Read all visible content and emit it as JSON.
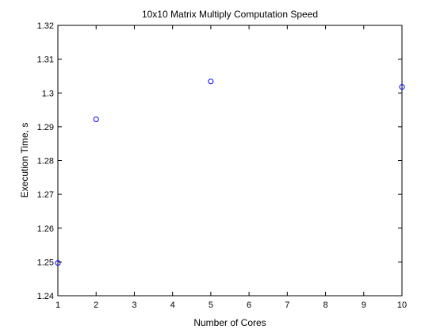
{
  "chart_data": {
    "type": "scatter",
    "title": "10x10 Matrix Multiply Computation Speed",
    "xlabel": "Number of Cores",
    "ylabel": "Execution Time, s",
    "xlim": [
      1,
      10
    ],
    "ylim": [
      1.24,
      1.32
    ],
    "xticks": [
      "1",
      "2",
      "3",
      "4",
      "5",
      "6",
      "7",
      "8",
      "9",
      "10"
    ],
    "yticks": [
      "1.24",
      "1.25",
      "1.26",
      "1.27",
      "1.28",
      "1.29",
      "1.3",
      "1.31",
      "1.32"
    ],
    "grid": false,
    "marker": "circle",
    "colors": {
      "marker": "#0000ff",
      "axes": "#000000",
      "background": "#ffffff"
    },
    "series": [
      {
        "x": [
          1,
          2,
          5,
          10
        ],
        "y": [
          1.2497,
          1.2922,
          1.3034,
          1.3018
        ]
      }
    ]
  }
}
